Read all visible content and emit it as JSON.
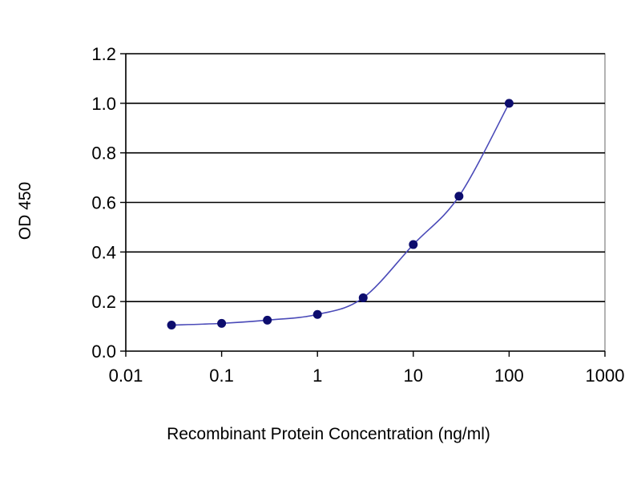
{
  "chart_data": {
    "type": "scatter",
    "xscale": "log",
    "xlabel": "Recombinant Protein Concentration (ng/ml)",
    "ylabel": "OD 450",
    "xlim": [
      0.01,
      1000
    ],
    "ylim": [
      0.0,
      1.2
    ],
    "grid": "horizontal",
    "x_tick_labels": [
      "0.01",
      "0.1",
      "1",
      "10",
      "100",
      "1000"
    ],
    "y_tick_labels": [
      "0.0",
      "0.2",
      "0.4",
      "0.6",
      "0.8",
      "1.0",
      "1.2"
    ],
    "series": [
      {
        "x": [
          0.03,
          0.1,
          0.3,
          1,
          3,
          10,
          30,
          100
        ],
        "y": [
          0.105,
          0.112,
          0.125,
          0.148,
          0.215,
          0.43,
          0.625,
          1.0
        ]
      }
    ],
    "colors": {
      "marker": "#0d0d6e",
      "line": "#4a4ab8",
      "grid": "#000000",
      "plot_border": "#7f7f7f"
    }
  }
}
